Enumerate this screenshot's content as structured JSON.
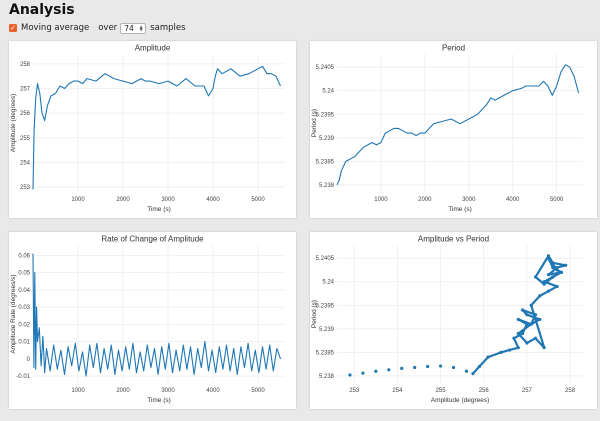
{
  "page": {
    "title": "Analysis",
    "moving_average": {
      "label": "Moving average",
      "checked": true,
      "over_label": "over",
      "samples": "74",
      "samples_label": "samples"
    },
    "accent": "#e8632a",
    "line_color": "#1f77b4"
  },
  "chart_data": [
    {
      "type": "line",
      "title": "Amplitude",
      "xlabel": "Time (s)",
      "ylabel": "Amplitude (degrees)",
      "xlim": [
        0,
        5600
      ],
      "ylim": [
        252.8,
        258.4
      ],
      "xticks": [
        1000,
        2000,
        3000,
        4000,
        5000
      ],
      "xtick_labels": [
        "1000",
        "2000",
        "3000",
        "4000",
        "5000"
      ],
      "yticks": [
        253,
        254,
        255,
        256,
        257,
        258
      ],
      "ytick_labels": [
        "253",
        "254",
        "255",
        "256",
        "257",
        "258"
      ],
      "grid": true,
      "series": [
        {
          "x": [
            0,
            25,
            60,
            100,
            150,
            200,
            260,
            320,
            400,
            500,
            600,
            700,
            800,
            900,
            1000,
            1100,
            1200,
            1400,
            1600,
            1800,
            2000,
            2200,
            2400,
            2500,
            2600,
            2800,
            3000,
            3200,
            3400,
            3600,
            3800,
            3900,
            4000,
            4050,
            4100,
            4200,
            4400,
            4600,
            4800,
            5000,
            5100,
            5200,
            5300,
            5400,
            5500
          ],
          "y": [
            252.9,
            255.3,
            256.6,
            257.2,
            256.8,
            256.0,
            255.7,
            256.3,
            256.7,
            256.8,
            257.1,
            257.0,
            257.2,
            257.3,
            257.3,
            257.2,
            257.4,
            257.3,
            257.6,
            257.4,
            257.3,
            257.2,
            257.4,
            257.3,
            257.3,
            257.2,
            257.3,
            257.1,
            257.4,
            257.1,
            257.1,
            256.7,
            257.0,
            257.5,
            257.8,
            257.6,
            257.8,
            257.5,
            257.6,
            257.8,
            257.9,
            257.6,
            257.6,
            257.5,
            257.1
          ]
        }
      ]
    },
    {
      "type": "line",
      "title": "Period",
      "xlabel": "Time (s)",
      "ylabel": "Period (s)",
      "xlim": [
        0,
        5600
      ],
      "ylim": [
        5.23785,
        5.24078
      ],
      "xticks": [
        1000,
        2000,
        3000,
        4000,
        5000
      ],
      "xtick_labels": [
        "1000",
        "2000",
        "3000",
        "4000",
        "5000"
      ],
      "yticks": [
        5.238,
        5.2385,
        5.239,
        5.2395,
        5.24,
        5.2405
      ],
      "ytick_labels": [
        "5.238",
        "5.2385",
        "5.239",
        "5.2395",
        "5.24",
        "5.2405"
      ],
      "grid": true,
      "series": [
        {
          "x": [
            0,
            50,
            100,
            200,
            300,
            400,
            500,
            600,
            700,
            800,
            900,
            1000,
            1100,
            1200,
            1300,
            1400,
            1500,
            1600,
            1700,
            1800,
            1900,
            2000,
            2200,
            2400,
            2600,
            2800,
            3000,
            3200,
            3400,
            3500,
            3600,
            3800,
            4000,
            4200,
            4300,
            4400,
            4500,
            4600,
            4700,
            4800,
            4900,
            5000,
            5100,
            5200,
            5300,
            5400,
            5500
          ],
          "y": [
            5.238,
            5.2381,
            5.2383,
            5.2385,
            5.23855,
            5.2386,
            5.2387,
            5.2388,
            5.23885,
            5.2389,
            5.23885,
            5.2389,
            5.2391,
            5.23915,
            5.2392,
            5.2392,
            5.23915,
            5.2391,
            5.2391,
            5.23905,
            5.2391,
            5.2391,
            5.2393,
            5.23935,
            5.2394,
            5.2393,
            5.2394,
            5.2395,
            5.2397,
            5.23985,
            5.2398,
            5.2399,
            5.24,
            5.24005,
            5.2401,
            5.2401,
            5.2401,
            5.2401,
            5.2402,
            5.2401,
            5.2399,
            5.2401,
            5.2404,
            5.24055,
            5.2405,
            5.2403,
            5.23995
          ]
        }
      ]
    },
    {
      "type": "line",
      "title": "Rate of Change of Amplitude",
      "xlabel": "Time (s)",
      "ylabel": "Amplitude Rate (degrees/s)",
      "xlim": [
        0,
        5600
      ],
      "ylim": [
        -0.014,
        0.066
      ],
      "xticks": [
        1000,
        2000,
        3000,
        4000,
        5000
      ],
      "xtick_labels": [
        "1000",
        "2000",
        "3000",
        "4000",
        "5000"
      ],
      "yticks": [
        -0.01,
        0,
        0.01,
        0.02,
        0.03,
        0.04,
        0.05,
        0.06
      ],
      "ytick_labels": [
        "-0.01",
        "0",
        "0.01",
        "0.02",
        "0.03",
        "0.04",
        "0.05",
        "0.06"
      ],
      "grid": true,
      "series": [
        {
          "x": [
            0,
            20,
            40,
            60,
            80,
            100,
            140,
            180,
            220,
            260,
            300,
            380,
            460,
            540,
            620,
            700,
            780,
            860,
            940,
            1020,
            1100,
            1180,
            1260,
            1340,
            1420,
            1500,
            1580,
            1660,
            1740,
            1820,
            1900,
            1980,
            2060,
            2140,
            2220,
            2300,
            2380,
            2460,
            2540,
            2620,
            2700,
            2780,
            2860,
            2940,
            3020,
            3100,
            3180,
            3260,
            3340,
            3420,
            3500,
            3580,
            3660,
            3740,
            3820,
            3900,
            3980,
            4060,
            4140,
            4220,
            4300,
            4380,
            4460,
            4540,
            4620,
            4700,
            4780,
            4860,
            4940,
            5020,
            5100,
            5180,
            5260,
            5340,
            5420,
            5500
          ],
          "y": [
            0.061,
            -0.005,
            0.05,
            -0.006,
            0.03,
            0.01,
            0.018,
            -0.004,
            0.013,
            -0.008,
            0.006,
            -0.007,
            0.008,
            -0.006,
            0.005,
            -0.009,
            0.007,
            -0.004,
            0.009,
            -0.007,
            0.004,
            -0.01,
            0.008,
            -0.005,
            0.009,
            -0.008,
            0.006,
            -0.006,
            0.008,
            -0.009,
            0.005,
            -0.007,
            0.007,
            -0.006,
            0.009,
            -0.008,
            0.004,
            -0.007,
            0.008,
            -0.005,
            0.006,
            -0.009,
            0.007,
            -0.006,
            0.009,
            -0.008,
            0.005,
            -0.007,
            0.008,
            -0.006,
            0.007,
            -0.009,
            0.006,
            -0.005,
            0.01,
            -0.007,
            0.005,
            -0.008,
            0.007,
            -0.006,
            0.008,
            -0.007,
            0.006,
            -0.009,
            0.007,
            -0.005,
            0.009,
            -0.007,
            0.005,
            -0.008,
            0.007,
            -0.006,
            0.008,
            -0.007,
            0.006,
            0.0
          ]
        }
      ]
    },
    {
      "type": "scatter",
      "title": "Amplitude vs Period",
      "xlabel": "Amplitude (degrees)",
      "ylabel": "Period (s)",
      "xlim": [
        252.6,
        258.3
      ],
      "ylim": [
        5.23785,
        5.24078
      ],
      "xticks": [
        253,
        254,
        255,
        256,
        257,
        258
      ],
      "xtick_labels": [
        "253",
        "254",
        "255",
        "256",
        "257",
        "258"
      ],
      "yticks": [
        5.238,
        5.2385,
        5.239,
        5.2395,
        5.24,
        5.2405
      ],
      "ytick_labels": [
        "5.238",
        "5.2385",
        "5.239",
        "5.2395",
        "5.24",
        "5.2405"
      ],
      "grid": true,
      "series": [
        {
          "x": [
            252.9,
            253.2,
            253.5,
            253.8,
            254.1,
            254.4,
            254.7,
            255.0,
            255.3,
            255.6,
            255.75,
            255.9,
            256.1,
            256.4,
            256.6,
            256.8,
            256.7,
            256.9,
            257.0,
            256.8,
            257.1,
            257.2,
            256.9,
            257.0,
            257.3,
            257.1,
            256.8,
            257.0,
            257.2,
            257.4,
            257.1,
            257.3,
            257.5,
            257.7,
            257.4,
            257.6,
            257.8,
            257.5,
            257.7,
            257.9,
            257.6,
            257.5,
            257.2,
            257.4,
            257.6,
            257.8,
            257.7,
            257.5,
            257.6
          ],
          "y": [
            5.23802,
            5.23806,
            5.2381,
            5.23813,
            5.23816,
            5.23818,
            5.2382,
            5.23821,
            5.23818,
            5.2381,
            5.23805,
            5.2382,
            5.2384,
            5.2385,
            5.23855,
            5.2386,
            5.2388,
            5.2389,
            5.2391,
            5.2392,
            5.2391,
            5.2393,
            5.2394,
            5.2393,
            5.2392,
            5.2391,
            5.2389,
            5.2387,
            5.2388,
            5.2386,
            5.2395,
            5.2397,
            5.2398,
            5.2399,
            5.24,
            5.2401,
            5.2402,
            5.24015,
            5.2403,
            5.24035,
            5.2404,
            5.24055,
            5.2401,
            5.23995,
            5.2401,
            5.2402,
            5.24025,
            5.2405,
            5.2403
          ]
        }
      ]
    }
  ]
}
